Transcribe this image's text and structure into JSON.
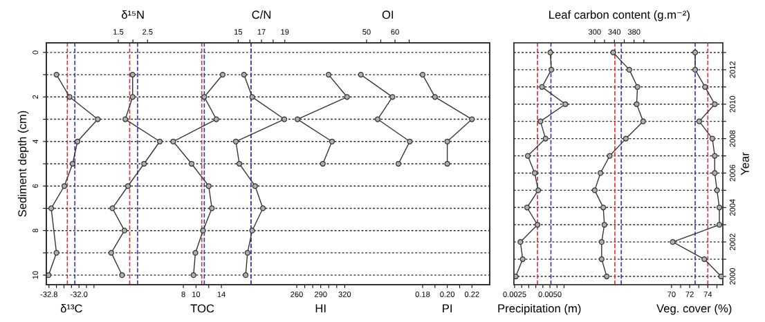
{
  "chart_data": [
    {
      "type": "line",
      "xlabel": "δ¹³C",
      "xlim": [
        -32.87,
        -21.05
      ],
      "xticks": [
        -32.8,
        {
          "value": -32.6,
          "label": null
        },
        {
          "value": -32.4,
          "label": null
        },
        {
          "value": -32.2,
          "label": null
        },
        {
          "value": -32.0,
          "label": "-32.0"
        },
        {
          "value": -31.8,
          "label": null
        },
        {
          "value": -31.6,
          "label": null
        }
      ],
      "x2label": "δ¹⁵N",
      "x2lim": [
        -0.96,
        14.2
      ],
      "x2ticks": [
        1.5,
        {
          "value": 2.0,
          "label": null
        },
        2.5
      ],
      "ylabel": "Sediment depth (cm)",
      "ylim": [
        10.43,
        -0.43
      ],
      "yticks": [
        0,
        {
          "value": 1,
          "label": null
        },
        2,
        {
          "value": 3,
          "label": null
        },
        4,
        {
          "value": 5,
          "label": null
        },
        6,
        {
          "value": 7,
          "label": null
        },
        8,
        {
          "value": 9,
          "label": null
        },
        10
      ],
      "grid": "y",
      "marker": "circle",
      "line_style": "solid",
      "series": [
        {
          "color": "#333333",
          "x": [
            -32.6,
            -32.25,
            -31.5,
            -32.04,
            -32.17,
            -32.39,
            -32.74,
            -32.6,
            -32.81
          ],
          "values": [
            1,
            2,
            3,
            4,
            5,
            6,
            7,
            9,
            10
          ]
        },
        {
          "color": "#333333",
          "axis": "x2",
          "x": [
            1.99,
            1.99,
            1.74,
            2.92,
            2.38,
            1.83,
            1.3,
            1.71,
            1.26,
            1.63
          ],
          "values": [
            1,
            2,
            3,
            4,
            5,
            6,
            7,
            8,
            9,
            10
          ]
        }
      ],
      "ref_lines": [
        {
          "axis": "x",
          "value": -32.31,
          "color": "#e0303a",
          "line_style": "dashed"
        },
        {
          "axis": "x",
          "value": -32.11,
          "color": "#3a3ab0",
          "line_style": "dashed"
        },
        {
          "axis": "x2",
          "value": 1.89,
          "color": "#e0303a",
          "line_style": "dashed"
        },
        {
          "axis": "x2",
          "value": 2.16,
          "color": "#3a3ab0",
          "line_style": "dashed"
        }
      ]
    },
    {
      "type": "line",
      "xlabel": "TOC",
      "xlim": [
        -13.6,
        56.3
      ],
      "xticks": [
        8,
        10,
        {
          "value": 12,
          "label": null
        },
        14
      ],
      "x2label": "C/N",
      "x2lim": [
        -1.46,
        36.58
      ],
      "x2ticks": [
        15,
        {
          "value": 16,
          "label": null
        },
        17,
        {
          "value": 18,
          "label": null
        },
        19
      ],
      "ylim": [
        10.43,
        -0.43
      ],
      "yticks": [
        0,
        1,
        2,
        3,
        4,
        5,
        6,
        7,
        8,
        9,
        10
      ],
      "tick_labels": "x",
      "marker": "circle",
      "line_style": "solid",
      "series": [
        {
          "color": "#333333",
          "x": [
            14.2,
            11.3,
            13.2,
            6.4,
            9.3,
            12.0,
            12.5,
            11.1,
            9.9,
            9.6
          ],
          "values": [
            1,
            2,
            3,
            4,
            5,
            6,
            7,
            8,
            9,
            10
          ]
        },
        {
          "color": "#333333",
          "axis": "x2",
          "x": [
            15.5,
            16.2,
            18.96,
            14.8,
            15.1,
            16.45,
            17.12,
            16.2,
            15.8,
            15.64
          ],
          "values": [
            1,
            2,
            3,
            4,
            5,
            6,
            7,
            8,
            9,
            10
          ]
        }
      ],
      "ref_lines": [
        {
          "axis": "x",
          "value": 10.9,
          "color": "#e0303a",
          "line_style": "dashed"
        },
        {
          "axis": "x",
          "value": 11.3,
          "color": "#3a3ab0",
          "line_style": "dashed"
        },
        {
          "axis": "x2",
          "value": 16.1,
          "color": "#e0303a",
          "line_style": "dashed"
        },
        {
          "axis": "x2",
          "value": 16.1,
          "color": "#3a3ab0",
          "line_style": "dashed"
        }
      ]
    },
    {
      "type": "line",
      "xlabel": "HI",
      "xlim": [
        -53.1,
        501.3
      ],
      "xticks": [
        260,
        {
          "value": 270,
          "label": null
        },
        {
          "value": 280,
          "label": null
        },
        290,
        {
          "value": 300,
          "label": null
        },
        {
          "value": 310,
          "label": null
        },
        320
      ],
      "x2label": "OI",
      "x2lim": [
        -62.6,
        93.3
      ],
      "x2ticks": [
        50,
        {
          "value": 55,
          "label": null
        },
        60,
        {
          "value": 65,
          "label": null
        }
      ],
      "ylim": [
        10.43,
        -0.43
      ],
      "yticks": [
        0,
        1,
        2,
        3,
        4,
        5,
        6,
        7,
        8,
        9,
        10
      ],
      "tick_labels": "x",
      "marker": "circle",
      "line_style": "solid",
      "series": [
        {
          "color": "#333333",
          "x": [
            299.8,
            322.9,
            260.9,
            304.1,
            292.6
          ],
          "values": [
            1,
            2,
            3,
            4,
            5
          ]
        },
        {
          "color": "#333333",
          "axis": "x2",
          "x": [
            48.0,
            59.1,
            53.9,
            65.2,
            61.2
          ],
          "values": [
            1,
            2,
            3,
            4,
            5
          ]
        }
      ]
    },
    {
      "type": "line",
      "xlabel": "PI",
      "xlim": [
        -0.1251,
        0.2344
      ],
      "xticks": [
        0.18,
        {
          "value": 0.19,
          "label": null
        },
        {
          "value": 0.2,
          "label": "0.20"
        },
        {
          "value": 0.21,
          "label": null
        },
        0.22
      ],
      "ylim": [
        10.43,
        -0.43
      ],
      "yticks": [
        0,
        1,
        2,
        3,
        4,
        5,
        6,
        7,
        8,
        9,
        10
      ],
      "tick_labels": "x",
      "marker": "circle",
      "line_style": "solid",
      "series": [
        {
          "color": "#333333",
          "x": [
            0.18,
            0.19,
            0.22,
            0.2,
            0.2
          ],
          "values": [
            1,
            2,
            3,
            4,
            5
          ]
        }
      ]
    },
    {
      "type": "line",
      "xlabel": "Precipitation (m)",
      "xlim": [
        0.00245,
        0.01724
      ],
      "xticks": [
        0.0025,
        {
          "value": 0.003,
          "label": null
        },
        {
          "value": 0.0035,
          "label": null
        },
        {
          "value": 0.004,
          "label": null
        },
        {
          "value": 0.0045,
          "label": null
        },
        {
          "value": 0.005,
          "label": "0.0050"
        },
        {
          "value": 0.0055,
          "label": null
        },
        {
          "value": 0.006,
          "label": null
        }
      ],
      "x2label": "Leaf carbon content (g.m⁻²)",
      "x2lim": [
        135.6,
        560.6
      ],
      "x2ticks": [
        300,
        {
          "value": 320,
          "label": null
        },
        340,
        {
          "value": 360,
          "label": null
        },
        380,
        {
          "value": 400,
          "label": null
        }
      ],
      "ylabel": "Year",
      "ylim": [
        1999.52,
        2013.56
      ],
      "yticks": [
        2000,
        {
          "value": 2001,
          "label": null
        },
        2002,
        {
          "value": 2003,
          "label": null
        },
        2004,
        {
          "value": 2005,
          "label": null
        },
        2006,
        {
          "value": 2007,
          "label": null
        },
        2008,
        {
          "value": 2009,
          "label": null
        },
        2010,
        {
          "value": 2011,
          "label": null
        },
        2012,
        {
          "value": 2013,
          "label": null
        }
      ],
      "grid": "y",
      "marker": "circle",
      "line_style": "solid",
      "series": [
        {
          "color": "#333333",
          "x": [
            0.00503,
            0.0051,
            0.00444,
            0.00609,
            0.00433,
            0.00469,
            0.00343,
            0.00392,
            0.00417,
            0.00338,
            0.00412,
            0.00291,
            0.00307,
            0.00258
          ],
          "values": [
            2013,
            2012,
            2011,
            2010,
            2009,
            2008,
            2007,
            2006,
            2005,
            2004,
            2003,
            2002,
            2001,
            2000
          ]
        },
        {
          "color": "#333333",
          "axis": "x2",
          "x": [
            337.6,
            370.4,
            386.9,
            385.4,
            398.6,
            363.4,
            330.5,
            311.7,
            300,
            317.4,
            319.7,
            314.1,
            314.1,
            324.4
          ],
          "values": [
            2013,
            2012,
            2011,
            2010,
            2009,
            2008,
            2007,
            2006,
            2005,
            2004,
            2003,
            2002,
            2001,
            2000
          ]
        }
      ],
      "ref_lines": [
        {
          "axis": "x",
          "value": 0.00412,
          "color": "#e0303a",
          "line_style": "dashed"
        },
        {
          "axis": "x",
          "value": 0.00507,
          "color": "#3a3ab0",
          "line_style": "dashed"
        },
        {
          "axis": "x2",
          "value": 341,
          "color": "#e0303a",
          "line_style": "dashed"
        },
        {
          "axis": "x2",
          "value": 354,
          "color": "#3a3ab0",
          "line_style": "dashed"
        }
      ]
    },
    {
      "type": "line",
      "xlabel": "Veg. cover (%)",
      "xlim": [
        52.62,
        75.65
      ],
      "xticks": [
        70,
        {
          "value": 71,
          "label": null
        },
        72,
        {
          "value": 73,
          "label": null
        },
        74,
        {
          "value": 75,
          "label": null
        }
      ],
      "ylim": [
        1999.52,
        2013.56
      ],
      "yticks": [
        2000,
        2001,
        2002,
        2003,
        2004,
        2005,
        2006,
        2007,
        2008,
        2009,
        2010,
        2011,
        2012,
        2013
      ],
      "tick_labels": "x",
      "marker": "circle",
      "line_style": "solid",
      "series": [
        {
          "color": "#333333",
          "x": [
            72.6,
            72.6,
            73.69,
            74.76,
            73.05,
            74.5,
            74.76,
            74.76,
            75.01,
            75.27,
            75.27,
            70.13,
            73.61,
            75.47
          ],
          "values": [
            2013,
            2012,
            2011,
            2010,
            2009,
            2008,
            2007,
            2006,
            2005,
            2004,
            2003,
            2002,
            2001,
            2000
          ]
        }
      ],
      "ref_lines": [
        {
          "axis": "x",
          "value": 72.6,
          "color": "#3a3ab0",
          "line_style": "dashed"
        },
        {
          "axis": "x",
          "value": 74.0,
          "color": "#e0303a",
          "line_style": "dashed"
        }
      ]
    }
  ]
}
